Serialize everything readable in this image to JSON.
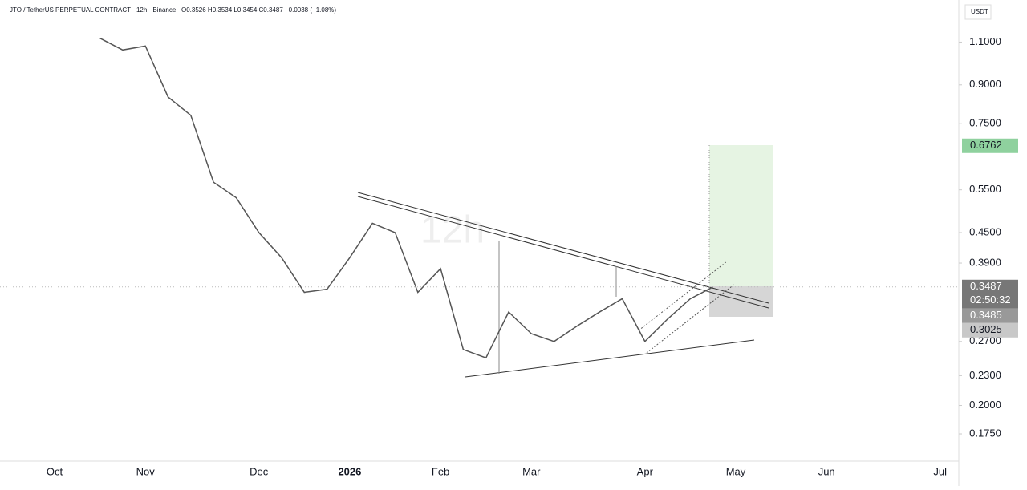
{
  "chart_data": {
    "type": "line",
    "title": "JTO / TetherUS PERPETUAL CONTRACT · 12h · Binance",
    "ohlc": "O0.3526 H0.3534 L0.3454 C0.3487 −0.0038 (−1.08%)",
    "watermark": "12h",
    "currency": "USDT",
    "categories": [
      "Oct",
      null,
      null,
      null,
      "Nov",
      null,
      null,
      null,
      null,
      "Dec",
      null,
      null,
      null,
      "2026",
      null,
      null,
      null,
      "Feb",
      null,
      null,
      null,
      "Mar",
      null,
      null,
      null,
      null,
      "Apr",
      null,
      null,
      null,
      "May",
      null,
      null,
      null,
      "Jun",
      null,
      null,
      null,
      null,
      "Jul"
    ],
    "series": [
      {
        "name": "JTO",
        "color": "#555555",
        "values": [
          null,
          null,
          1.12,
          1.06,
          1.08,
          0.85,
          0.78,
          0.57,
          0.53,
          0.45,
          0.4,
          0.34,
          0.345,
          0.4,
          0.47,
          0.45,
          0.34,
          0.38,
          0.26,
          0.25,
          0.31,
          0.28,
          0.27,
          0.29,
          0.31,
          0.33,
          0.27,
          0.3,
          0.33,
          0.3487,
          null,
          null,
          null,
          null,
          null,
          null,
          null,
          null,
          null,
          null
        ]
      }
    ],
    "log_scale": true,
    "ylim": [
      0.154,
      1.34
    ],
    "yticks": [
      {
        "value": 1.1,
        "label": "1.1000"
      },
      {
        "value": 0.9,
        "label": "0.9000"
      },
      {
        "value": 0.75,
        "label": "0.7500"
      },
      {
        "value": 0.55,
        "label": "0.5500"
      },
      {
        "value": 0.45,
        "label": "0.4500"
      },
      {
        "value": 0.39,
        "label": "0.3900"
      },
      {
        "value": 0.27,
        "label": "0.2700"
      },
      {
        "value": 0.23,
        "label": "0.2300"
      },
      {
        "value": 0.2,
        "label": "0.2000"
      },
      {
        "value": 0.175,
        "label": "0.1750"
      }
    ],
    "price_labels": [
      {
        "value": 0.6762,
        "color": "#8fd19e"
      },
      {
        "value": 0.3487,
        "color": "#777777",
        "countdown": "02:50:32"
      },
      {
        "value": 0.3485,
        "color": "#999999"
      },
      {
        "value": 0.3025,
        "color": "#c8c8c8"
      }
    ]
  }
}
